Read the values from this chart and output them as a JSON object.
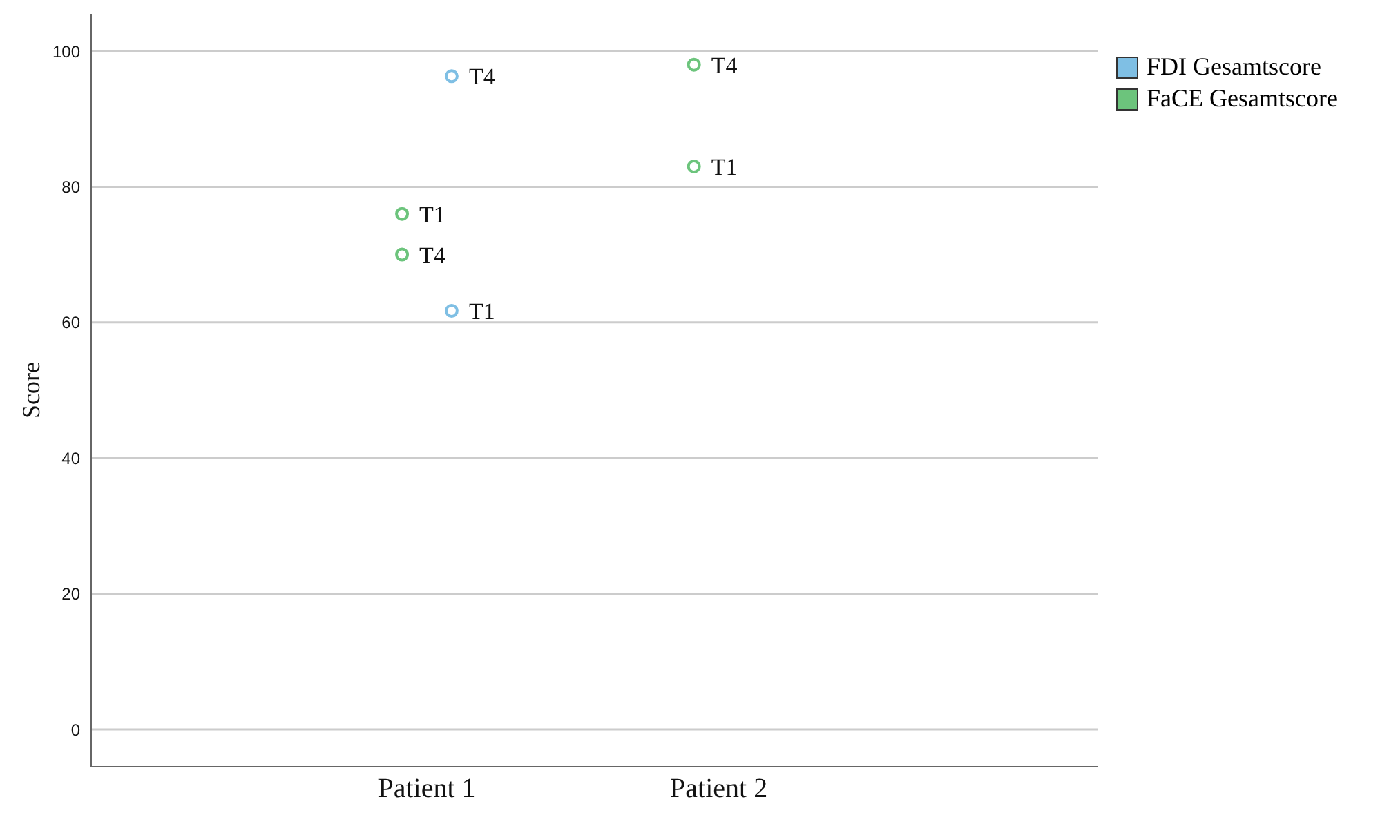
{
  "chart_data": {
    "type": "scatter",
    "ylabel": "Score",
    "categories": [
      "Patient 1",
      "Patient 2"
    ],
    "series": [
      {
        "name": "FDI Gesamtscore",
        "color": "#7fbfe4",
        "x": [
          "Patient 1",
          "Patient 1"
        ],
        "values": [
          61.7,
          96.3
        ],
        "value_labels": [
          "T1",
          "T4"
        ]
      },
      {
        "name": "FaCE Gesamtscore",
        "color": "#6cc47c",
        "x": [
          "Patient 1",
          "Patient 1",
          "Patient 2",
          "Patient 2"
        ],
        "values": [
          76,
          70,
          83,
          98
        ],
        "value_labels": [
          "T1",
          "T4",
          "T1",
          "T4"
        ]
      }
    ],
    "ylim": [
      -5.5,
      105.5
    ],
    "yticks": [
      0,
      20,
      40,
      60,
      80,
      100
    ],
    "grid": "y",
    "legend": "top right",
    "marker": "circle"
  }
}
